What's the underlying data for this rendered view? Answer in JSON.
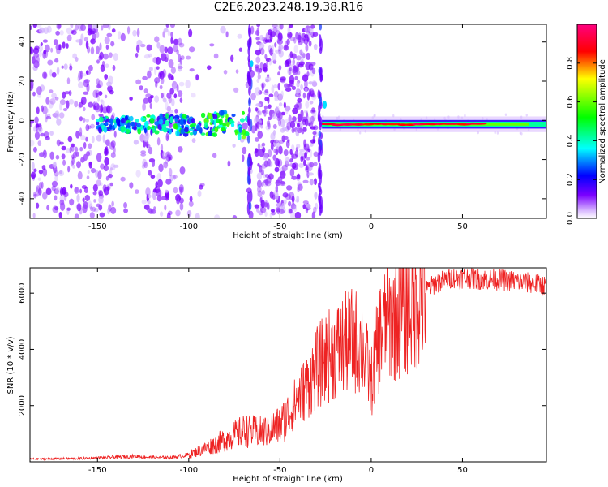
{
  "page": {
    "title": "C2E6.2023.248.19.38.R16"
  },
  "chart_data": [
    {
      "type": "heatmap",
      "title": "",
      "xlabel": "Height of straight line (km)",
      "ylabel": "Frequency (Hz)",
      "xlim": [
        -187,
        96
      ],
      "ylim": [
        -50,
        49
      ],
      "xticks": [
        -150,
        -100,
        -50,
        0,
        50
      ],
      "yticks": [
        -40,
        -20,
        0,
        20,
        40
      ],
      "grid": false,
      "colorbar": {
        "label": "Normalized spectral amplitude",
        "range": [
          0,
          1
        ],
        "ticks": [
          0.0,
          0.2,
          0.4,
          0.6,
          0.8
        ],
        "tick_labels": [
          "0.0",
          "0.2",
          "0.4",
          "0.6",
          "0.8"
        ],
        "colors": [
          "#ffffff",
          "#7a00ff",
          "#0000ff",
          "#00ffff",
          "#00ff00",
          "#ffff00",
          "#ff0000",
          "#ff0080"
        ]
      },
      "features": [
        {
          "name": "diffuse scatter",
          "x": [
            -187,
            -30
          ],
          "amplitude": 0.1
        },
        {
          "name": "signal trace",
          "x": [
            -150,
            -67
          ],
          "frequency": -2,
          "amplitude": 0.3
        },
        {
          "name": "signal trace",
          "x": [
            -27,
            96
          ],
          "frequency": -2,
          "amplitude": 0.95
        }
      ]
    },
    {
      "type": "line",
      "title": "",
      "xlabel": "Height of straight line (km)",
      "ylabel": "SNR (10 * v/v)",
      "xlim": [
        -187,
        96
      ],
      "ylim": [
        0,
        6900
      ],
      "xticks": [
        -150,
        -100,
        -50,
        0,
        50
      ],
      "yticks": [
        2000,
        4000,
        6000
      ],
      "grid": false,
      "series": [
        {
          "color": "#ee2222",
          "x": [
            -187,
            -170,
            -160,
            -150,
            -140,
            -130,
            -120,
            -110,
            -100,
            -90,
            -80,
            -70,
            -60,
            -50,
            -45,
            -40,
            -35,
            -30,
            -25,
            -20,
            -15,
            -10,
            -5,
            0,
            5,
            10,
            15,
            20,
            25,
            30,
            35,
            40,
            45,
            50,
            60,
            70,
            80,
            90,
            96
          ],
          "y": [
            100,
            110,
            120,
            140,
            170,
            200,
            160,
            150,
            250,
            500,
            800,
            1100,
            1050,
            1300,
            1700,
            2300,
            2700,
            3300,
            3700,
            3900,
            4150,
            4350,
            4150,
            2800,
            4600,
            4950,
            5200,
            5500,
            5800,
            6100,
            6350,
            6450,
            6550,
            6550,
            6500,
            6480,
            6420,
            6330,
            6250
          ]
        }
      ]
    }
  ]
}
